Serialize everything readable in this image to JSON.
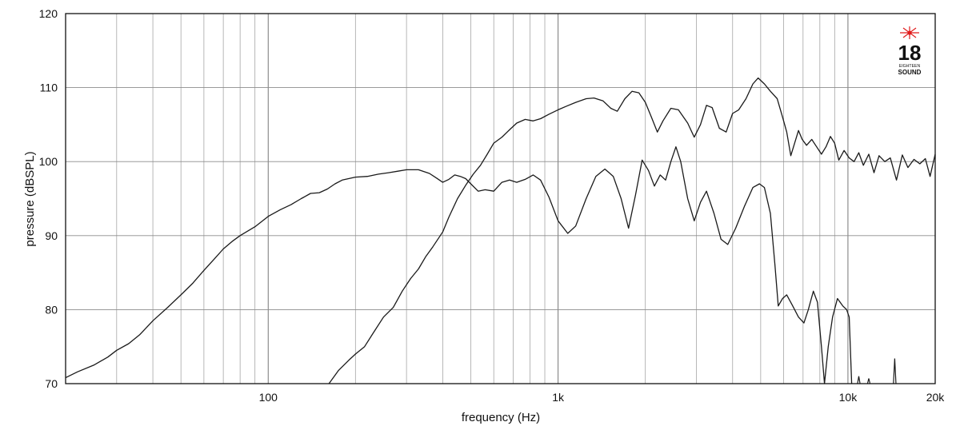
{
  "chart_data": {
    "type": "line",
    "xscale": "log",
    "xlabel": "frequency (Hz)",
    "ylabel": "pressure (dBSPL)",
    "xlim": [
      20,
      20000
    ],
    "ylim": [
      70,
      120
    ],
    "grid": true,
    "x_tick_labels": [
      {
        "value": 100,
        "label": "100"
      },
      {
        "value": 1000,
        "label": "1k"
      },
      {
        "value": 10000,
        "label": "10k"
      },
      {
        "value": 20000,
        "label": "20k"
      }
    ],
    "y_ticks": [
      70,
      80,
      90,
      100,
      110,
      120
    ],
    "series": [
      {
        "values": [
          [
            20,
            70.8
          ],
          [
            22,
            71.6
          ],
          [
            25,
            72.5
          ],
          [
            28,
            73.6
          ],
          [
            30,
            74.5
          ],
          [
            33,
            75.4
          ],
          [
            36,
            76.6
          ],
          [
            40,
            78.5
          ],
          [
            45,
            80.3
          ],
          [
            50,
            82.0
          ],
          [
            55,
            83.6
          ],
          [
            60,
            85.3
          ],
          [
            65,
            86.8
          ],
          [
            70,
            88.2
          ],
          [
            75,
            89.2
          ],
          [
            80,
            90.0
          ],
          [
            90,
            91.2
          ],
          [
            100,
            92.6
          ],
          [
            110,
            93.5
          ],
          [
            120,
            94.2
          ],
          [
            130,
            95.0
          ],
          [
            140,
            95.7
          ],
          [
            150,
            95.8
          ],
          [
            160,
            96.3
          ],
          [
            170,
            97.0
          ],
          [
            180,
            97.5
          ],
          [
            200,
            97.9
          ],
          [
            220,
            98.0
          ],
          [
            240,
            98.3
          ],
          [
            260,
            98.5
          ],
          [
            280,
            98.7
          ],
          [
            300,
            98.9
          ],
          [
            330,
            98.9
          ],
          [
            360,
            98.4
          ],
          [
            380,
            97.8
          ],
          [
            400,
            97.2
          ],
          [
            420,
            97.6
          ],
          [
            440,
            98.2
          ],
          [
            460,
            98.0
          ],
          [
            480,
            97.7
          ],
          [
            500,
            97.0
          ],
          [
            530,
            96.0
          ],
          [
            560,
            96.2
          ],
          [
            600,
            96.0
          ],
          [
            640,
            97.2
          ],
          [
            680,
            97.5
          ],
          [
            720,
            97.2
          ],
          [
            770,
            97.6
          ],
          [
            820,
            98.2
          ],
          [
            870,
            97.5
          ],
          [
            930,
            95.2
          ],
          [
            1000,
            92.0
          ],
          [
            1080,
            90.3
          ],
          [
            1150,
            91.3
          ],
          [
            1250,
            95.0
          ],
          [
            1350,
            98.0
          ],
          [
            1450,
            99.0
          ],
          [
            1550,
            98.0
          ],
          [
            1650,
            95.0
          ],
          [
            1750,
            91.0
          ],
          [
            1850,
            95.5
          ],
          [
            1950,
            100.2
          ],
          [
            2050,
            98.8
          ],
          [
            2150,
            96.7
          ],
          [
            2250,
            98.2
          ],
          [
            2350,
            97.5
          ],
          [
            2450,
            100.0
          ],
          [
            2550,
            102.0
          ],
          [
            2650,
            100.0
          ],
          [
            2800,
            95.0
          ],
          [
            2950,
            92.0
          ],
          [
            3100,
            94.5
          ],
          [
            3250,
            96.0
          ],
          [
            3450,
            93.0
          ],
          [
            3650,
            89.5
          ],
          [
            3850,
            88.8
          ],
          [
            4100,
            91.0
          ],
          [
            4400,
            94.0
          ],
          [
            4700,
            96.5
          ],
          [
            4950,
            97.0
          ],
          [
            5150,
            96.5
          ],
          [
            5400,
            93.0
          ],
          [
            5600,
            86.0
          ],
          [
            5750,
            80.5
          ],
          [
            5950,
            81.5
          ],
          [
            6150,
            82.0
          ],
          [
            6450,
            80.5
          ],
          [
            6750,
            79.0
          ],
          [
            7050,
            78.2
          ],
          [
            7300,
            80.0
          ],
          [
            7600,
            82.5
          ],
          [
            7850,
            81.0
          ],
          [
            8100,
            75.0
          ],
          [
            8300,
            70.0
          ],
          [
            8550,
            75.0
          ],
          [
            8850,
            79.0
          ],
          [
            9200,
            81.5
          ],
          [
            9600,
            80.5
          ],
          [
            9900,
            80.0
          ],
          [
            10100,
            79.0
          ],
          [
            10300,
            70.0
          ]
        ]
      },
      {
        "values": [
          [
            162,
            70.0
          ],
          [
            175,
            71.8
          ],
          [
            190,
            73.2
          ],
          [
            200,
            74.0
          ],
          [
            215,
            75.0
          ],
          [
            230,
            76.8
          ],
          [
            250,
            79.0
          ],
          [
            270,
            80.3
          ],
          [
            290,
            82.5
          ],
          [
            310,
            84.2
          ],
          [
            330,
            85.5
          ],
          [
            350,
            87.2
          ],
          [
            370,
            88.5
          ],
          [
            400,
            90.5
          ],
          [
            420,
            92.5
          ],
          [
            450,
            95.0
          ],
          [
            480,
            96.8
          ],
          [
            510,
            98.3
          ],
          [
            540,
            99.5
          ],
          [
            570,
            101.0
          ],
          [
            600,
            102.5
          ],
          [
            640,
            103.3
          ],
          [
            680,
            104.3
          ],
          [
            720,
            105.2
          ],
          [
            770,
            105.7
          ],
          [
            820,
            105.5
          ],
          [
            870,
            105.8
          ],
          [
            930,
            106.4
          ],
          [
            1000,
            107.0
          ],
          [
            1070,
            107.5
          ],
          [
            1150,
            108.0
          ],
          [
            1250,
            108.5
          ],
          [
            1330,
            108.6
          ],
          [
            1430,
            108.2
          ],
          [
            1520,
            107.2
          ],
          [
            1600,
            106.8
          ],
          [
            1700,
            108.5
          ],
          [
            1800,
            109.5
          ],
          [
            1900,
            109.3
          ],
          [
            2000,
            108.0
          ],
          [
            2100,
            106.0
          ],
          [
            2200,
            104.0
          ],
          [
            2300,
            105.5
          ],
          [
            2450,
            107.2
          ],
          [
            2600,
            107.0
          ],
          [
            2800,
            105.2
          ],
          [
            2950,
            103.3
          ],
          [
            3100,
            105.0
          ],
          [
            3250,
            107.6
          ],
          [
            3400,
            107.3
          ],
          [
            3600,
            104.5
          ],
          [
            3800,
            104.0
          ],
          [
            4000,
            106.5
          ],
          [
            4200,
            107.0
          ],
          [
            4450,
            108.5
          ],
          [
            4700,
            110.5
          ],
          [
            4900,
            111.3
          ],
          [
            5150,
            110.5
          ],
          [
            5400,
            109.5
          ],
          [
            5700,
            108.5
          ],
          [
            5950,
            106.0
          ],
          [
            6150,
            104.0
          ],
          [
            6350,
            100.8
          ],
          [
            6550,
            102.5
          ],
          [
            6750,
            104.2
          ],
          [
            6950,
            103.0
          ],
          [
            7200,
            102.2
          ],
          [
            7500,
            103.0
          ],
          [
            7800,
            102.0
          ],
          [
            8100,
            101.0
          ],
          [
            8400,
            102.0
          ],
          [
            8700,
            103.4
          ],
          [
            9000,
            102.5
          ],
          [
            9300,
            100.2
          ],
          [
            9700,
            101.5
          ],
          [
            10100,
            100.5
          ],
          [
            10500,
            100.0
          ],
          [
            10900,
            101.2
          ],
          [
            11300,
            99.5
          ],
          [
            11800,
            101.0
          ],
          [
            12300,
            98.5
          ],
          [
            12800,
            100.8
          ],
          [
            13400,
            100.0
          ],
          [
            14000,
            100.5
          ],
          [
            14700,
            97.5
          ],
          [
            15400,
            100.9
          ],
          [
            16100,
            99.2
          ],
          [
            16900,
            100.3
          ],
          [
            17700,
            99.7
          ],
          [
            18500,
            100.4
          ],
          [
            19200,
            98.0
          ],
          [
            20000,
            101.0
          ]
        ]
      }
    ]
  },
  "logo": {
    "number": "18",
    "line1": "EIGHTEEN",
    "line2": "SOUND",
    "star_color": "#e01b1b"
  }
}
